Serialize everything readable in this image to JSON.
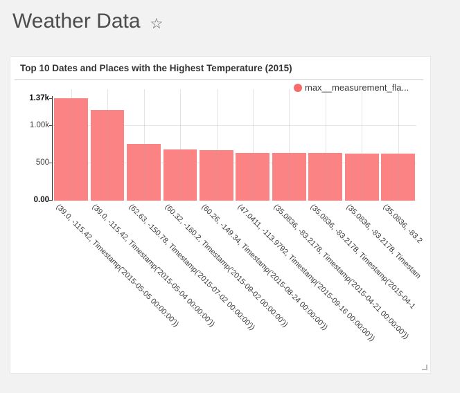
{
  "header": {
    "title": "Weather Data",
    "favorite_icon": "☆"
  },
  "widget": {
    "title": "Top 10 Dates and Places with the Highest Temperature (2015)",
    "legend_label": "max__measurement_fla...",
    "legend_color": "#f96b6b"
  },
  "chart_data": {
    "type": "bar",
    "title": "Top 10 Dates and Places with the Highest Temperature (2015)",
    "legend": {
      "entries": [
        "max__measurement_fla..."
      ],
      "position": "top-right"
    },
    "bar_color": "#fb8383",
    "grid": true,
    "xlabel": "",
    "ylabel": "",
    "label_rotation_deg": 45,
    "categories": [
      "(39.0, -115.42, Timestamp('2015-05-05 00:00:00'))",
      "(39.0, -115.42, Timestamp('2015-05-04 00:00:00'))",
      "(62.63, -150.78, Timestamp('2015-07-02 00:00:00'))",
      "(60.32, -160.2, Timestamp('2015-09-02 00:00:00'))",
      "(60.26, -149.34, Timestamp('2015-08-24 00:00:00'))",
      "(47.0411, -113.9792, Timestamp('2015-09-16 00:00:00'))",
      "(35.0836, -83.2178, Timestamp('2015-04-21 00:00:00'))",
      "(35.0836, -83.2178, Timestamp('2015-04-1",
      "(35.0836, -83.2178, Timestam",
      "(35.0836, -83.2"
    ],
    "values": [
      1368,
      1208,
      750,
      678,
      670,
      630,
      628,
      627,
      626,
      625
    ],
    "ylim": [
      0,
      1487
    ],
    "yticks": [
      {
        "label": "1.37k",
        "value": 1368,
        "bold": true
      },
      {
        "label": "1.00k",
        "value": 1000,
        "bold": false
      },
      {
        "label": "500",
        "value": 500,
        "bold": false
      },
      {
        "label": "0.00",
        "value": 0,
        "bold": true
      }
    ]
  }
}
